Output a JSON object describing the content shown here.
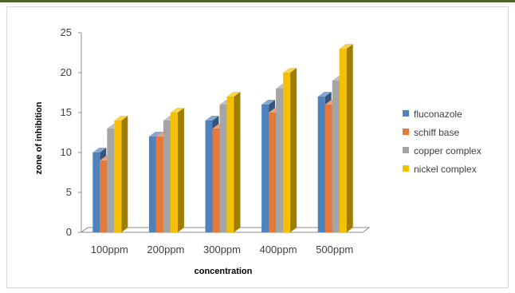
{
  "chart_data": {
    "type": "bar",
    "title": "",
    "xlabel": "concentration",
    "ylabel": "zone of inhibition",
    "categories": [
      "100ppm",
      "200ppm",
      "300ppm",
      "400ppm",
      "500ppm"
    ],
    "series": [
      {
        "name": "fluconazole",
        "color": "#4f81bd",
        "values": [
          10,
          12,
          14,
          16,
          17
        ]
      },
      {
        "name": "schiff base",
        "color": "#e4793a",
        "values": [
          9,
          12,
          13,
          15,
          16
        ]
      },
      {
        "name": "copper complex",
        "color": "#a5a5a5",
        "values": [
          13,
          14,
          16,
          18,
          19
        ]
      },
      {
        "name": "nickel complex",
        "color": "#f5c000",
        "values": [
          14,
          15,
          17,
          20,
          23
        ]
      }
    ],
    "ylim": [
      0,
      25
    ],
    "yticks": [
      0,
      5,
      10,
      15,
      20,
      25
    ],
    "grid": false,
    "legend_position": "right",
    "style": "3d-clustered-column"
  }
}
